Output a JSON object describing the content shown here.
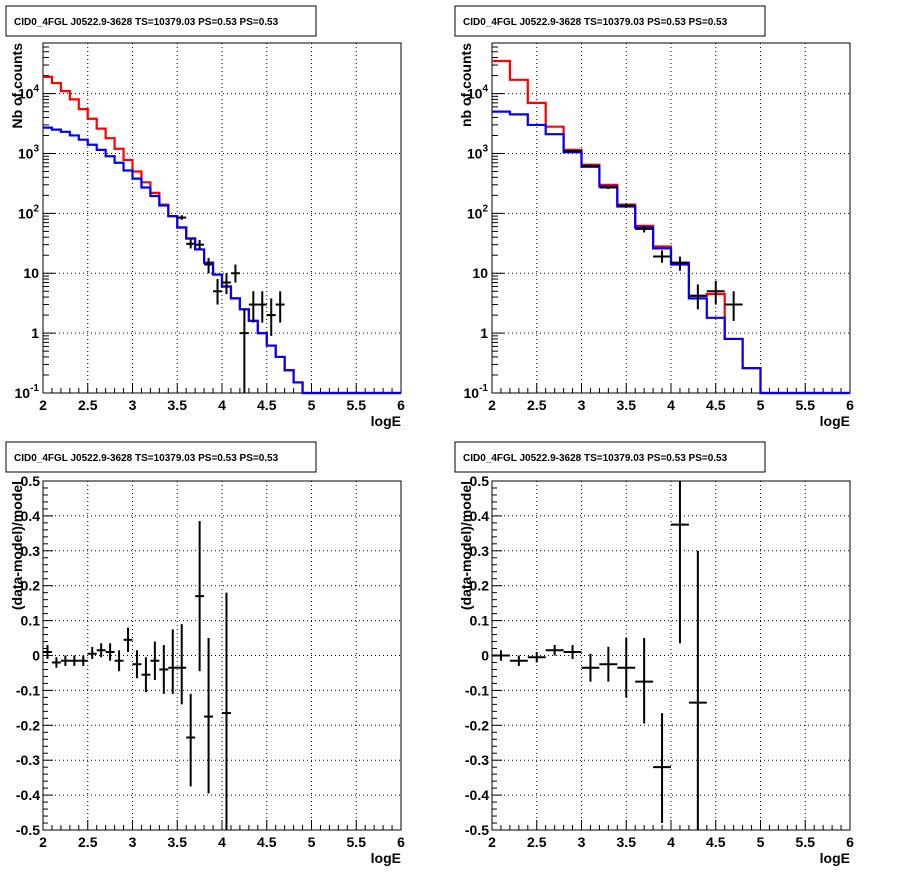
{
  "chart_data": [
    {
      "type": "step-line-with-errorbars",
      "title": "CID0_4FGL J0522.9-3628 TS=10379.03 PS=0.53 PS=0.53",
      "xlabel": "logE",
      "ylabel": "Nb of counts",
      "xlim": [
        2,
        6
      ],
      "ylim": [
        0.1,
        70000
      ],
      "y_scale": "log",
      "grid": true,
      "x_ticks": [
        "2",
        "2.5",
        "3",
        "3.5",
        "4",
        "4.5",
        "5",
        "5.5",
        "6"
      ],
      "y_ticks": [
        {
          "value": 0.1,
          "base": "10",
          "exp": "-1"
        },
        {
          "value": 1,
          "label": "1"
        },
        {
          "value": 10,
          "label": "10"
        },
        {
          "value": 100,
          "base": "10",
          "exp": "2"
        },
        {
          "value": 1000,
          "base": "10",
          "exp": "3"
        },
        {
          "value": 10000,
          "base": "10",
          "exp": "4"
        }
      ],
      "bin_edges": [
        2.0,
        2.1,
        2.2,
        2.3,
        2.4,
        2.5,
        2.6,
        2.7,
        2.8,
        2.9,
        3.0,
        3.1,
        3.2,
        3.3,
        3.4,
        3.5,
        3.6,
        3.7,
        3.8,
        3.9,
        4.0,
        4.1,
        4.2,
        4.3,
        4.4,
        4.5,
        4.6,
        4.7,
        4.8,
        4.9,
        5.0,
        5.1,
        5.2,
        5.3,
        5.4,
        5.5,
        5.6,
        5.7,
        5.8,
        5.9,
        6.0
      ],
      "series": [
        {
          "color": "#ff0000",
          "kind": "step",
          "values": [
            19000,
            15000,
            11000,
            8000,
            5500,
            3800,
            2600,
            1800,
            1200,
            780,
            500,
            330,
            220,
            140,
            90,
            58,
            38,
            25,
            15,
            9.5,
            6,
            3.8,
            2.5,
            1.6,
            1,
            0.62,
            0.4,
            0.24,
            0.15,
            0.1,
            0.1,
            0.1,
            0.1,
            0.1,
            0.1,
            0.1,
            0.1,
            0.1,
            0.1,
            0.1
          ]
        },
        {
          "color": "#0000ff",
          "kind": "step",
          "values": [
            2700,
            2500,
            2300,
            2000,
            1700,
            1400,
            1150,
            900,
            700,
            520,
            380,
            270,
            195,
            135,
            90,
            58,
            38,
            25,
            15,
            9.5,
            6,
            3.8,
            2.5,
            1.6,
            1,
            0.62,
            0.4,
            0.24,
            0.15,
            0.1,
            0.1,
            0.1,
            0.1,
            0.1,
            0.1,
            0.1,
            0.1,
            0.1,
            0.1,
            0.1
          ]
        },
        {
          "color": "#000000",
          "kind": "points",
          "points": [
            {
              "x": 3.55,
              "y": 85,
              "xerr": 0.05,
              "ylo": 78,
              "yhi": 93
            },
            {
              "x": 3.65,
              "y": 31,
              "xerr": 0.05,
              "ylo": 26,
              "yhi": 37
            },
            {
              "x": 3.75,
              "y": 30,
              "xerr": 0.05,
              "ylo": 25,
              "yhi": 36
            },
            {
              "x": 3.85,
              "y": 14,
              "xerr": 0.05,
              "ylo": 10,
              "yhi": 18
            },
            {
              "x": 3.95,
              "y": 5,
              "xerr": 0.05,
              "ylo": 3,
              "yhi": 8
            },
            {
              "x": 4.05,
              "y": 7,
              "xerr": 0.05,
              "ylo": 4.5,
              "yhi": 10
            },
            {
              "x": 4.15,
              "y": 10,
              "xerr": 0.05,
              "ylo": 7,
              "yhi": 14
            },
            {
              "x": 4.25,
              "y": 1,
              "xerr": 0.05,
              "ylo": 0.1,
              "yhi": 2.5
            },
            {
              "x": 4.35,
              "y": 3,
              "xerr": 0.05,
              "ylo": 1.5,
              "yhi": 5
            },
            {
              "x": 4.45,
              "y": 3,
              "xerr": 0.05,
              "ylo": 1.5,
              "yhi": 5
            },
            {
              "x": 4.55,
              "y": 2,
              "xerr": 0.05,
              "ylo": 0.9,
              "yhi": 3.8
            },
            {
              "x": 4.65,
              "y": 3,
              "xerr": 0.05,
              "ylo": 1.5,
              "yhi": 5
            }
          ]
        }
      ]
    },
    {
      "type": "step-line-with-errorbars",
      "title": "CID0_4FGL J0522.9-3628 TS=10379.03 PS=0.53 PS=0.53",
      "xlabel": "logE",
      "ylabel": "nb of counts",
      "xlim": [
        2,
        6
      ],
      "ylim": [
        0.1,
        70000
      ],
      "y_scale": "log",
      "grid": true,
      "x_ticks": [
        "2",
        "2.5",
        "3",
        "3.5",
        "4",
        "4.5",
        "5",
        "5.5",
        "6"
      ],
      "y_ticks": [
        {
          "value": 0.1,
          "base": "10",
          "exp": "-1"
        },
        {
          "value": 1,
          "label": "1"
        },
        {
          "value": 10,
          "label": "10"
        },
        {
          "value": 100,
          "base": "10",
          "exp": "2"
        },
        {
          "value": 1000,
          "base": "10",
          "exp": "3"
        },
        {
          "value": 10000,
          "base": "10",
          "exp": "4"
        }
      ],
      "bin_edges": [
        2.0,
        2.2,
        2.4,
        2.6,
        2.8,
        3.0,
        3.2,
        3.4,
        3.6,
        3.8,
        4.0,
        4.2,
        4.4,
        4.6,
        4.8,
        5.0,
        5.2,
        5.4,
        5.6,
        5.8,
        6.0
      ],
      "series": [
        {
          "color": "#ff0000",
          "kind": "step",
          "values": [
            35000,
            17000,
            7000,
            2800,
            1150,
            650,
            300,
            140,
            62,
            28,
            15,
            4.2,
            4.5,
            0.8,
            0.26,
            0.1,
            0.1,
            0.1,
            0.1,
            0.1
          ]
        },
        {
          "color": "#0000ff",
          "kind": "step",
          "values": [
            5000,
            4500,
            3000,
            2100,
            1050,
            600,
            280,
            130,
            58,
            26,
            14,
            3.8,
            1.8,
            0.8,
            0.26,
            0.1,
            0.1,
            0.1,
            0.1,
            0.1
          ]
        },
        {
          "color": "#000000",
          "kind": "points",
          "points": [
            {
              "x": 2.9,
              "y": 1100,
              "xerr": 0.1,
              "ylo": 1050,
              "yhi": 1150
            },
            {
              "x": 3.1,
              "y": 620,
              "xerr": 0.1,
              "ylo": 590,
              "yhi": 650
            },
            {
              "x": 3.3,
              "y": 270,
              "xerr": 0.1,
              "ylo": 255,
              "yhi": 285
            },
            {
              "x": 3.5,
              "y": 135,
              "xerr": 0.1,
              "ylo": 124,
              "yhi": 146
            },
            {
              "x": 3.7,
              "y": 55,
              "xerr": 0.1,
              "ylo": 48,
              "yhi": 62
            },
            {
              "x": 3.9,
              "y": 19,
              "xerr": 0.1,
              "ylo": 15,
              "yhi": 24
            },
            {
              "x": 4.1,
              "y": 15,
              "xerr": 0.1,
              "ylo": 11,
              "yhi": 19
            },
            {
              "x": 4.3,
              "y": 4.2,
              "xerr": 0.1,
              "ylo": 2.5,
              "yhi": 6.5
            },
            {
              "x": 4.5,
              "y": 5,
              "xerr": 0.1,
              "ylo": 3,
              "yhi": 7.5
            },
            {
              "x": 4.7,
              "y": 3,
              "xerr": 0.1,
              "ylo": 1.6,
              "yhi": 5
            }
          ]
        }
      ]
    },
    {
      "type": "scatter-errorbars",
      "title": "CID0_4FGL J0522.9-3628 TS=10379.03 PS=0.53 PS=0.53",
      "xlabel": "logE",
      "ylabel": "(data-model)/model",
      "xlim": [
        2,
        6
      ],
      "ylim": [
        -0.5,
        0.5
      ],
      "y_scale": "linear",
      "grid": true,
      "x_ticks": [
        "2",
        "2.5",
        "3",
        "3.5",
        "4",
        "4.5",
        "5",
        "5.5",
        "6"
      ],
      "y_ticks": [
        "0.5",
        "0.4",
        "0.3",
        "0.2",
        "0.1",
        "0",
        "-0.1",
        "-0.2",
        "-0.3",
        "-0.4",
        "-0.5"
      ],
      "series": [
        {
          "color": "#000000",
          "kind": "points",
          "points": [
            {
              "x": 2.05,
              "y": 0.01,
              "xerr": 0.05,
              "ylo": -0.01,
              "yhi": 0.03
            },
            {
              "x": 2.15,
              "y": -0.02,
              "xerr": 0.05,
              "ylo": -0.035,
              "yhi": -0.005
            },
            {
              "x": 2.25,
              "y": -0.015,
              "xerr": 0.05,
              "ylo": -0.03,
              "yhi": 0.0
            },
            {
              "x": 2.35,
              "y": -0.015,
              "xerr": 0.05,
              "ylo": -0.03,
              "yhi": 0.0
            },
            {
              "x": 2.45,
              "y": -0.015,
              "xerr": 0.05,
              "ylo": -0.03,
              "yhi": 0.0
            },
            {
              "x": 2.55,
              "y": 0.005,
              "xerr": 0.05,
              "ylo": -0.01,
              "yhi": 0.025
            },
            {
              "x": 2.65,
              "y": 0.015,
              "xerr": 0.05,
              "ylo": -0.005,
              "yhi": 0.035
            },
            {
              "x": 2.75,
              "y": 0.01,
              "xerr": 0.05,
              "ylo": -0.015,
              "yhi": 0.035
            },
            {
              "x": 2.85,
              "y": -0.015,
              "xerr": 0.05,
              "ylo": -0.045,
              "yhi": 0.015
            },
            {
              "x": 2.95,
              "y": 0.045,
              "xerr": 0.05,
              "ylo": 0.01,
              "yhi": 0.08
            },
            {
              "x": 3.05,
              "y": -0.025,
              "xerr": 0.05,
              "ylo": -0.065,
              "yhi": 0.015
            },
            {
              "x": 3.15,
              "y": -0.055,
              "xerr": 0.05,
              "ylo": -0.105,
              "yhi": -0.005
            },
            {
              "x": 3.25,
              "y": -0.015,
              "xerr": 0.05,
              "ylo": -0.07,
              "yhi": 0.04
            },
            {
              "x": 3.35,
              "y": -0.04,
              "xerr": 0.05,
              "ylo": -0.11,
              "yhi": 0.03
            },
            {
              "x": 3.45,
              "y": -0.035,
              "xerr": 0.05,
              "ylo": -0.11,
              "yhi": 0.075
            },
            {
              "x": 3.55,
              "y": -0.035,
              "xerr": 0.05,
              "ylo": -0.14,
              "yhi": 0.09
            },
            {
              "x": 3.65,
              "y": -0.235,
              "xerr": 0.05,
              "ylo": -0.375,
              "yhi": -0.11
            },
            {
              "x": 3.75,
              "y": 0.17,
              "xerr": 0.05,
              "ylo": -0.045,
              "yhi": 0.385
            },
            {
              "x": 3.85,
              "y": -0.175,
              "xerr": 0.05,
              "ylo": -0.395,
              "yhi": 0.05
            },
            {
              "x": 4.05,
              "y": -0.165,
              "xerr": 0.05,
              "ylo": -0.5,
              "yhi": 0.18
            }
          ]
        }
      ]
    },
    {
      "type": "scatter-errorbars",
      "title": "CID0_4FGL J0522.9-3628 TS=10379.03 PS=0.53 PS=0.53",
      "xlabel": "logE",
      "ylabel": "(data-model)/model",
      "xlim": [
        2,
        6
      ],
      "ylim": [
        -0.5,
        0.5
      ],
      "y_scale": "linear",
      "grid": true,
      "x_ticks": [
        "2",
        "2.5",
        "3",
        "3.5",
        "4",
        "4.5",
        "5",
        "5.5",
        "6"
      ],
      "y_ticks": [
        "0.5",
        "0.4",
        "0.3",
        "0.2",
        "0.1",
        "0",
        "-0.1",
        "-0.2",
        "-0.3",
        "-0.4",
        "-0.5"
      ],
      "series": [
        {
          "color": "#000000",
          "kind": "points",
          "points": [
            {
              "x": 2.1,
              "y": 0.0,
              "xerr": 0.1,
              "ylo": -0.015,
              "yhi": 0.015
            },
            {
              "x": 2.3,
              "y": -0.015,
              "xerr": 0.1,
              "ylo": -0.03,
              "yhi": 0.0
            },
            {
              "x": 2.5,
              "y": -0.005,
              "xerr": 0.1,
              "ylo": -0.02,
              "yhi": 0.01
            },
            {
              "x": 2.7,
              "y": 0.015,
              "xerr": 0.1,
              "ylo": 0.0,
              "yhi": 0.03
            },
            {
              "x": 2.9,
              "y": 0.01,
              "xerr": 0.1,
              "ylo": -0.01,
              "yhi": 0.03
            },
            {
              "x": 3.1,
              "y": -0.035,
              "xerr": 0.1,
              "ylo": -0.075,
              "yhi": 0.005
            },
            {
              "x": 3.3,
              "y": -0.025,
              "xerr": 0.1,
              "ylo": -0.075,
              "yhi": 0.025
            },
            {
              "x": 3.5,
              "y": -0.035,
              "xerr": 0.1,
              "ylo": -0.12,
              "yhi": 0.05
            },
            {
              "x": 3.7,
              "y": -0.075,
              "xerr": 0.1,
              "ylo": -0.195,
              "yhi": 0.05
            },
            {
              "x": 3.9,
              "y": -0.32,
              "xerr": 0.1,
              "ylo": -0.48,
              "yhi": -0.165
            },
            {
              "x": 4.1,
              "y": 0.375,
              "xerr": 0.1,
              "ylo": 0.035,
              "yhi": 0.5
            },
            {
              "x": 4.3,
              "y": -0.135,
              "xerr": 0.1,
              "ylo": -0.5,
              "yhi": 0.3
            }
          ]
        }
      ]
    }
  ]
}
